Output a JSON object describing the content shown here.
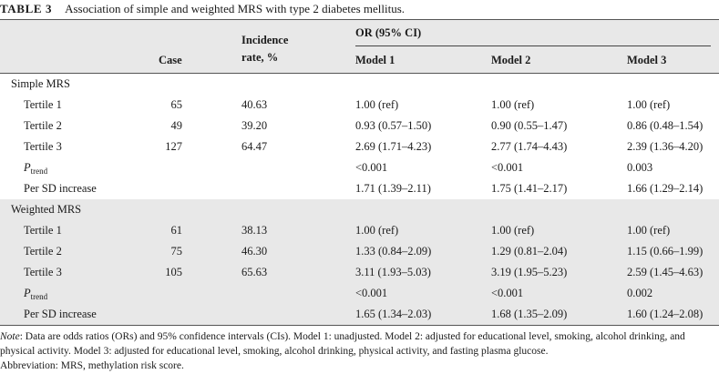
{
  "caption": {
    "label": "TABLE 3",
    "title": "Association of simple and weighted MRS with type 2 diabetes mellitus."
  },
  "header": {
    "case": "Case",
    "incidence_line1": "Incidence",
    "incidence_line2": "rate, %",
    "or_group": "OR (95% CI)",
    "model1": "Model 1",
    "model2": "Model 2",
    "model3": "Model 3"
  },
  "sections": [
    {
      "title": "Simple MRS",
      "rows": [
        {
          "label": "Tertile 1",
          "case": "65",
          "rate": "40.63",
          "m1": "1.00 (ref)",
          "m2": "1.00 (ref)",
          "m3": "1.00 (ref)"
        },
        {
          "label": "Tertile 2",
          "case": "49",
          "rate": "39.20",
          "m1": "0.93 (0.57–1.50)",
          "m2": "0.90 (0.55–1.47)",
          "m3": "0.86 (0.48–1.54)"
        },
        {
          "label": "Tertile 3",
          "case": "127",
          "rate": "64.47",
          "m1": "2.69 (1.71–4.23)",
          "m2": "2.77 (1.74–4.43)",
          "m3": "2.39 (1.36–4.20)"
        },
        {
          "label_main": "P",
          "label_sub": "trend",
          "case": "",
          "rate": "",
          "m1": "<0.001",
          "m2": "<0.001",
          "m3": "0.003"
        },
        {
          "label": "Per SD increase",
          "case": "",
          "rate": "",
          "m1": "1.71 (1.39–2.11)",
          "m2": "1.75 (1.41–2.17)",
          "m3": "1.66 (1.29–2.14)"
        }
      ]
    },
    {
      "title": "Weighted MRS",
      "rows": [
        {
          "label": "Tertile 1",
          "case": "61",
          "rate": "38.13",
          "m1": "1.00 (ref)",
          "m2": "1.00 (ref)",
          "m3": "1.00 (ref)"
        },
        {
          "label": "Tertile 2",
          "case": "75",
          "rate": "46.30",
          "m1": "1.33 (0.84–2.09)",
          "m2": "1.29 (0.81–2.04)",
          "m3": "1.15 (0.66–1.99)"
        },
        {
          "label": "Tertile 3",
          "case": "105",
          "rate": "65.63",
          "m1": "3.11 (1.93–5.03)",
          "m2": "3.19 (1.95–5.23)",
          "m3": "2.59 (1.45–4.63)"
        },
        {
          "label_main": "P",
          "label_sub": "trend",
          "case": "",
          "rate": "",
          "m1": "<0.001",
          "m2": "<0.001",
          "m3": "0.002"
        },
        {
          "label": "Per SD increase",
          "case": "",
          "rate": "",
          "m1": "1.65 (1.34–2.03)",
          "m2": "1.68 (1.35–2.09)",
          "m3": "1.60 (1.24–2.08)"
        }
      ]
    }
  ],
  "notes": {
    "note_label": "Note",
    "note_text": ": Data are odds ratios (ORs) and 95% confidence intervals (CIs). Model 1: unadjusted. Model 2: adjusted for educational level, smoking, alcohol drinking, and physical activity. Model 3: adjusted for educational level, smoking, alcohol drinking, physical activity, and fasting plasma glucose.",
    "abbreviation": "Abbreviation: MRS, methylation risk score."
  }
}
